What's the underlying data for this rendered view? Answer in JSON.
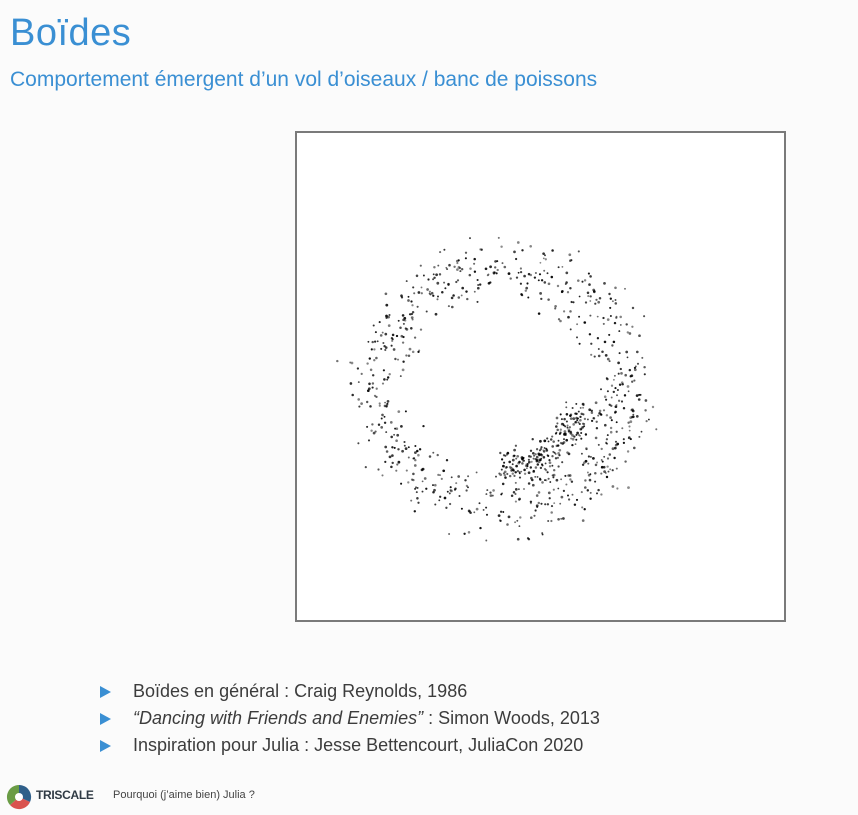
{
  "slide": {
    "title": "Boïdes",
    "subtitle": "Comportement émergent d’un vol d’oiseaux / banc de poissons"
  },
  "simulation": {
    "description_icon": "boids-scatter",
    "point_color": "#000000",
    "frame_color": "#7a7a7a"
  },
  "bullets": [
    {
      "text": "Boïdes en général : Craig Reynolds, 1986"
    },
    {
      "italic": "“Dancing with Friends and Enemies”",
      "text": " : Simon Woods, 2013"
    },
    {
      "text": "Inspiration pour Julia : Jesse Bettencourt, JuliaCon 2020"
    }
  ],
  "footer": {
    "logo_text": "TRISCALE",
    "text": "Pourquoi (j’aime bien) Julia ?"
  },
  "colors": {
    "accent": "#3a8fd3",
    "text": "#3c3c3c"
  }
}
